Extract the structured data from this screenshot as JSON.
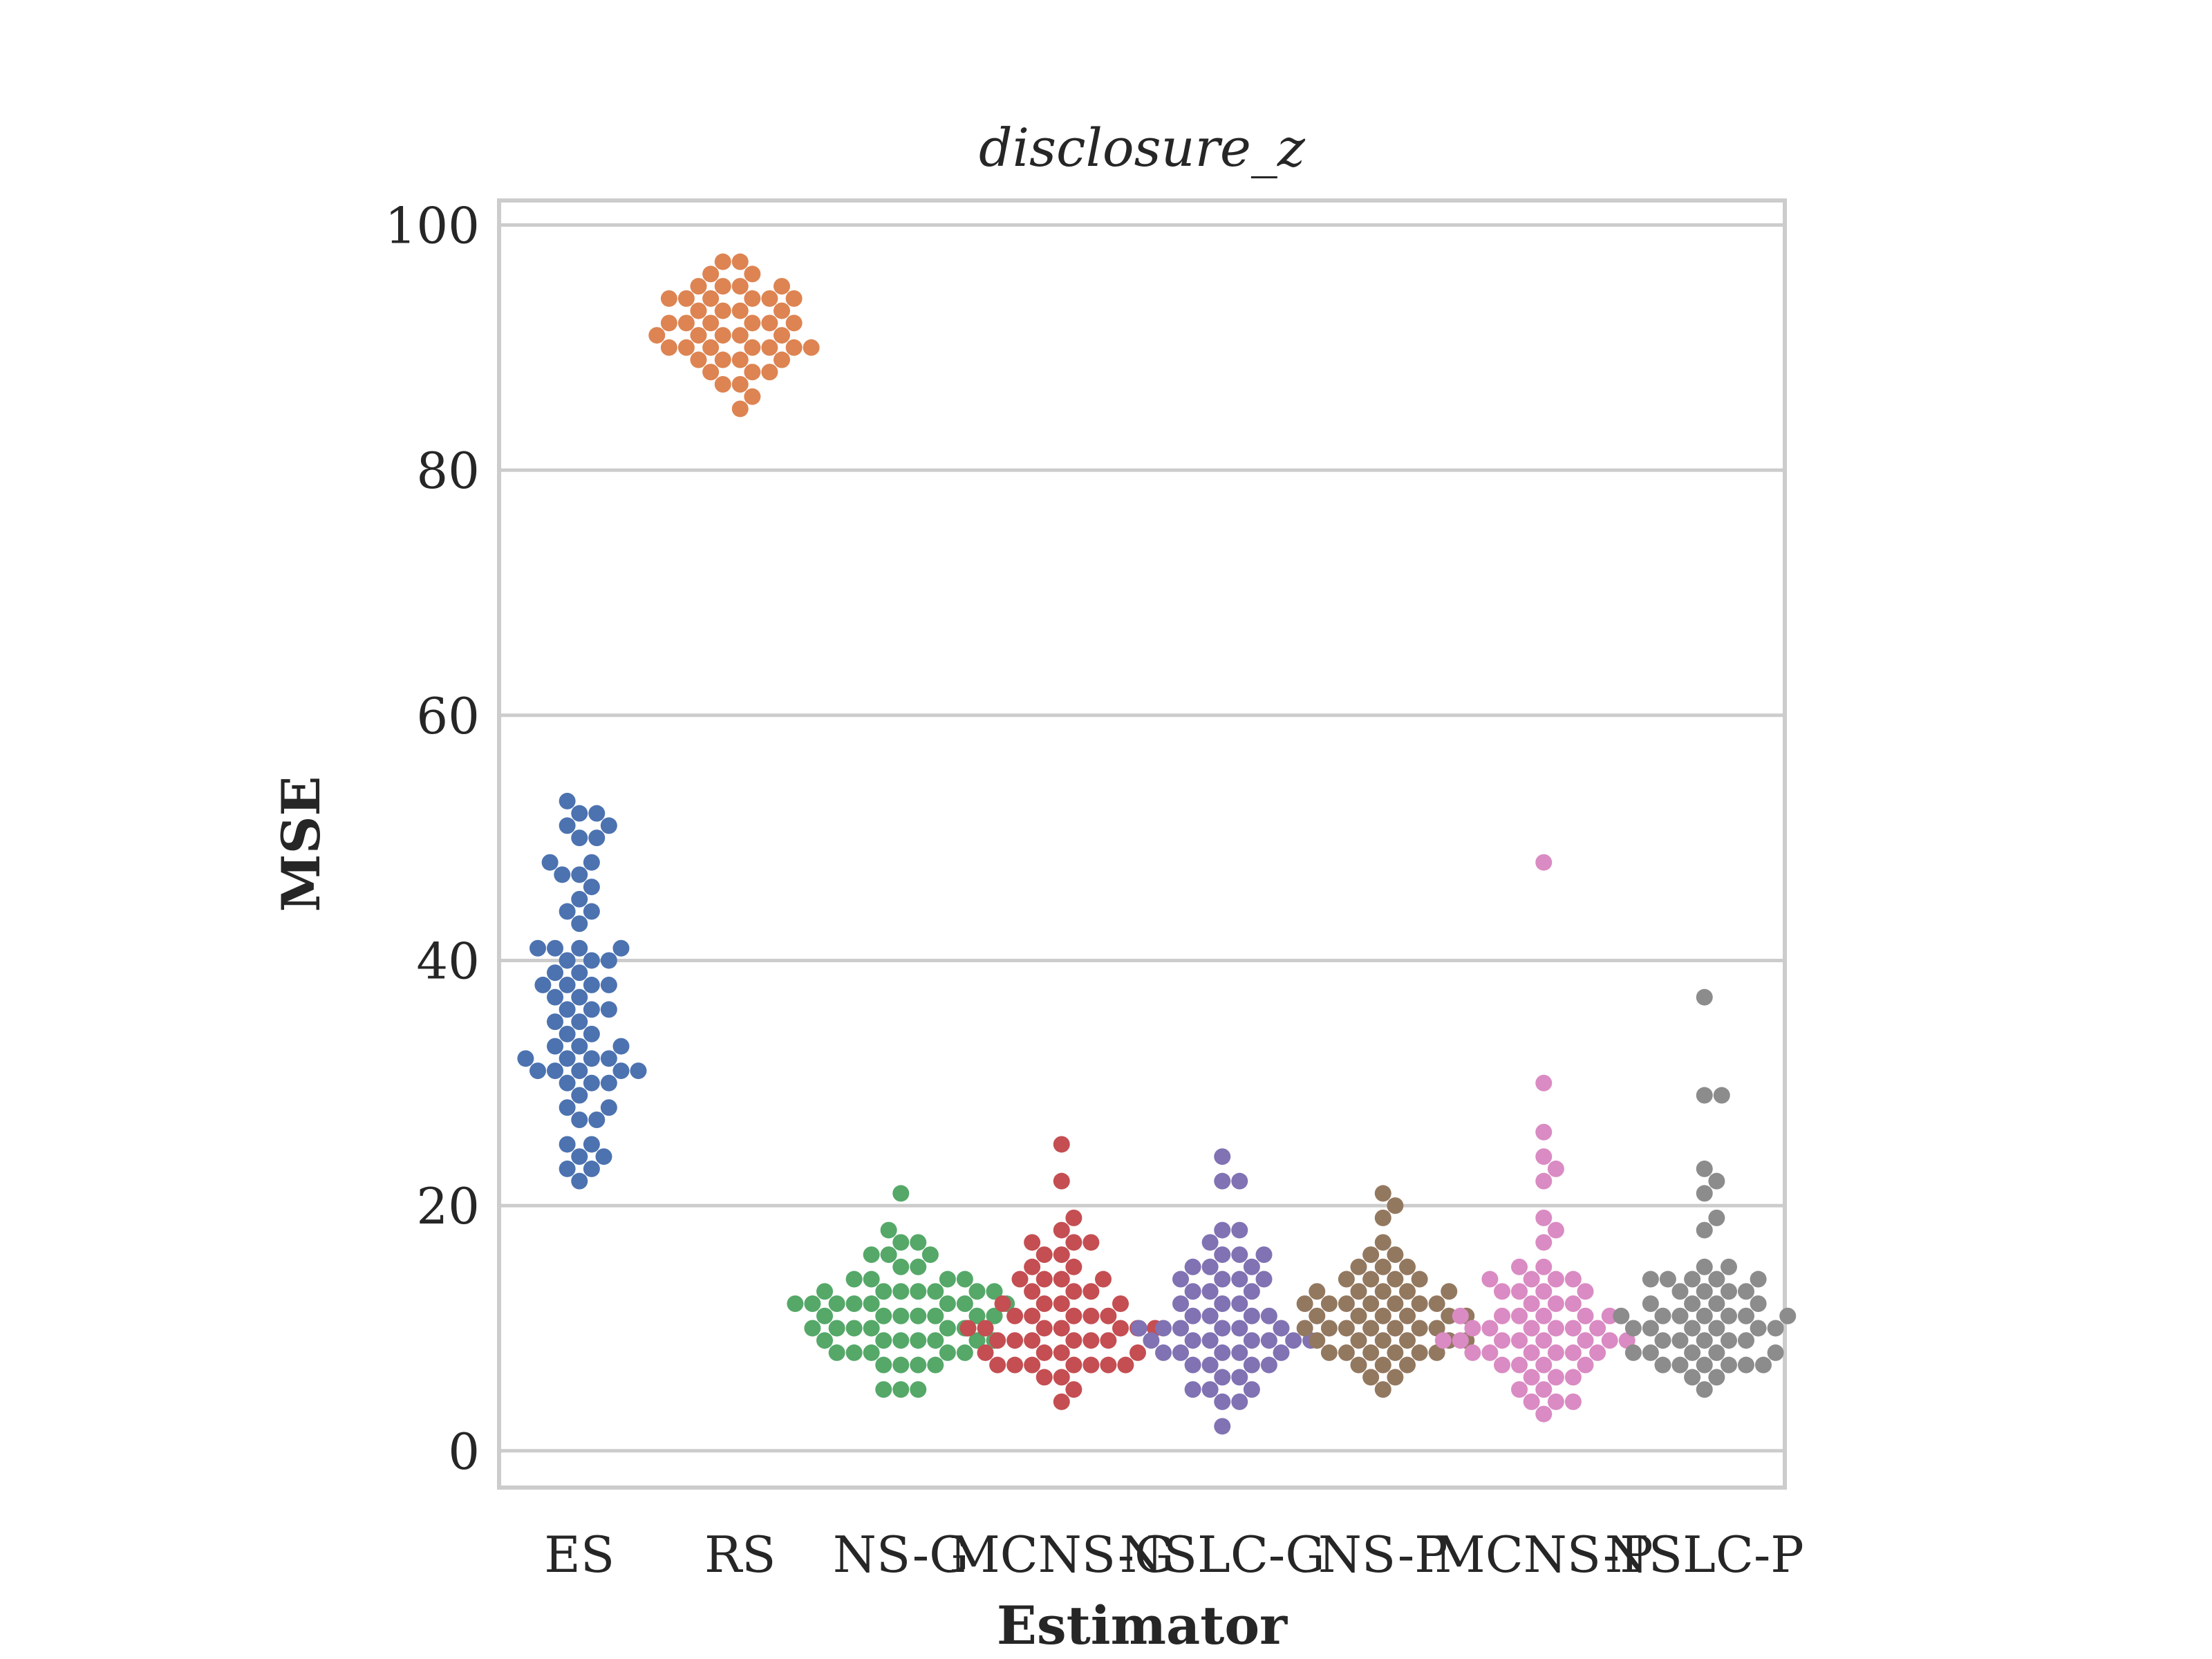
{
  "chart_data": {
    "type": "scatter",
    "subtype": "swarm",
    "title": "disclosure_z",
    "xlabel": "Estimator",
    "ylabel": "MSE",
    "ylim": [
      -3,
      102
    ],
    "yticks": [
      0,
      20,
      40,
      60,
      80,
      100
    ],
    "categories": [
      "ES",
      "RS",
      "NS-G",
      "MCNS-G",
      "NSLC-G",
      "NS-P",
      "MCNS-P",
      "NSLC-P"
    ],
    "grid": true,
    "legend": "none",
    "colors": {
      "ES": "#4c72b0",
      "RS": "#dd8452",
      "NS-G": "#55a868",
      "MCNS-G": "#c44e52",
      "NSLC-G": "#8172b3",
      "NS-P": "#937860",
      "MCNS-P": "#da8bc3",
      "NSLC-P": "#8c8c8c"
    },
    "series": [
      {
        "category": "ES",
        "values": [
          53,
          52,
          52,
          51,
          51,
          50,
          50,
          48,
          48,
          47,
          47,
          46,
          45,
          44,
          44,
          43,
          41,
          41,
          41,
          41,
          40,
          40,
          40,
          39,
          39,
          38,
          38,
          38,
          38,
          37,
          37,
          36,
          36,
          36,
          35,
          35,
          34,
          34,
          33,
          33,
          33,
          32,
          32,
          32,
          32,
          31,
          31,
          31,
          31,
          31,
          30,
          30,
          30,
          29,
          28,
          28,
          27,
          27,
          25,
          25,
          24,
          24,
          23,
          23,
          22
        ]
      },
      {
        "category": "RS",
        "values": [
          97,
          97,
          96,
          96,
          95,
          95,
          95,
          95,
          94,
          94,
          94,
          94,
          94,
          94,
          93,
          93,
          93,
          93,
          92,
          92,
          92,
          92,
          92,
          92,
          91,
          91,
          91,
          91,
          91,
          90,
          90,
          90,
          90,
          90,
          90,
          90,
          89,
          89,
          89,
          89,
          88,
          88,
          88,
          87,
          87,
          86,
          85
        ]
      },
      {
        "category": "NS-G",
        "values": [
          21,
          18,
          17,
          17,
          16,
          16,
          16,
          15,
          15,
          14,
          14,
          14,
          14,
          13,
          13,
          13,
          13,
          13,
          13,
          13,
          12,
          12,
          12,
          12,
          12,
          12,
          12,
          12,
          11,
          11,
          11,
          11,
          11,
          11,
          11,
          10,
          10,
          10,
          10,
          10,
          10,
          9,
          9,
          9,
          9,
          9,
          9,
          9,
          8,
          8,
          8,
          8,
          8,
          7,
          7,
          7,
          7,
          5,
          5,
          5
        ]
      },
      {
        "category": "MCNS-G",
        "values": [
          25,
          22,
          19,
          18,
          17,
          17,
          17,
          16,
          16,
          15,
          15,
          14,
          14,
          14,
          14,
          13,
          13,
          13,
          12,
          12,
          12,
          12,
          11,
          11,
          11,
          11,
          11,
          10,
          10,
          10,
          10,
          10,
          10,
          10,
          9,
          9,
          9,
          9,
          9,
          9,
          8,
          8,
          8,
          8,
          7,
          7,
          7,
          7,
          7,
          7,
          7,
          6,
          6,
          5,
          4
        ]
      },
      {
        "category": "NSLC-G",
        "values": [
          24,
          22,
          22,
          18,
          18,
          17,
          16,
          16,
          16,
          15,
          15,
          15,
          14,
          14,
          14,
          14,
          13,
          13,
          13,
          12,
          12,
          12,
          11,
          11,
          11,
          11,
          10,
          10,
          10,
          10,
          10,
          10,
          9,
          9,
          9,
          9,
          9,
          9,
          9,
          8,
          8,
          8,
          8,
          8,
          7,
          7,
          7,
          7,
          6,
          6,
          5,
          5,
          5,
          4,
          4,
          2
        ]
      },
      {
        "category": "NS-P",
        "values": [
          21,
          20,
          19,
          17,
          16,
          16,
          15,
          15,
          15,
          14,
          14,
          14,
          14,
          13,
          13,
          13,
          13,
          13,
          12,
          12,
          12,
          12,
          12,
          12,
          12,
          11,
          11,
          11,
          11,
          11,
          11,
          10,
          10,
          10,
          10,
          10,
          10,
          10,
          9,
          9,
          9,
          9,
          9,
          9,
          8,
          8,
          8,
          8,
          8,
          8,
          7,
          7,
          7,
          6,
          6,
          5
        ]
      },
      {
        "category": "MCNS-P",
        "values": [
          48,
          30,
          26,
          24,
          23,
          22,
          19,
          18,
          17,
          15,
          15,
          14,
          14,
          14,
          14,
          13,
          13,
          13,
          13,
          12,
          12,
          12,
          11,
          11,
          11,
          11,
          11,
          11,
          10,
          10,
          10,
          10,
          10,
          10,
          9,
          9,
          9,
          9,
          9,
          9,
          9,
          9,
          8,
          8,
          8,
          8,
          8,
          8,
          7,
          7,
          7,
          7,
          6,
          6,
          6,
          5,
          5,
          4,
          4,
          4,
          3
        ]
      },
      {
        "category": "NSLC-P",
        "values": [
          37,
          29,
          29,
          23,
          22,
          21,
          19,
          18,
          15,
          15,
          14,
          14,
          14,
          14,
          14,
          13,
          13,
          13,
          13,
          12,
          12,
          12,
          12,
          11,
          11,
          11,
          11,
          11,
          11,
          11,
          10,
          10,
          10,
          10,
          10,
          10,
          9,
          9,
          9,
          9,
          9,
          8,
          8,
          8,
          8,
          8,
          7,
          7,
          7,
          7,
          7,
          7,
          6,
          6,
          5
        ]
      }
    ]
  }
}
